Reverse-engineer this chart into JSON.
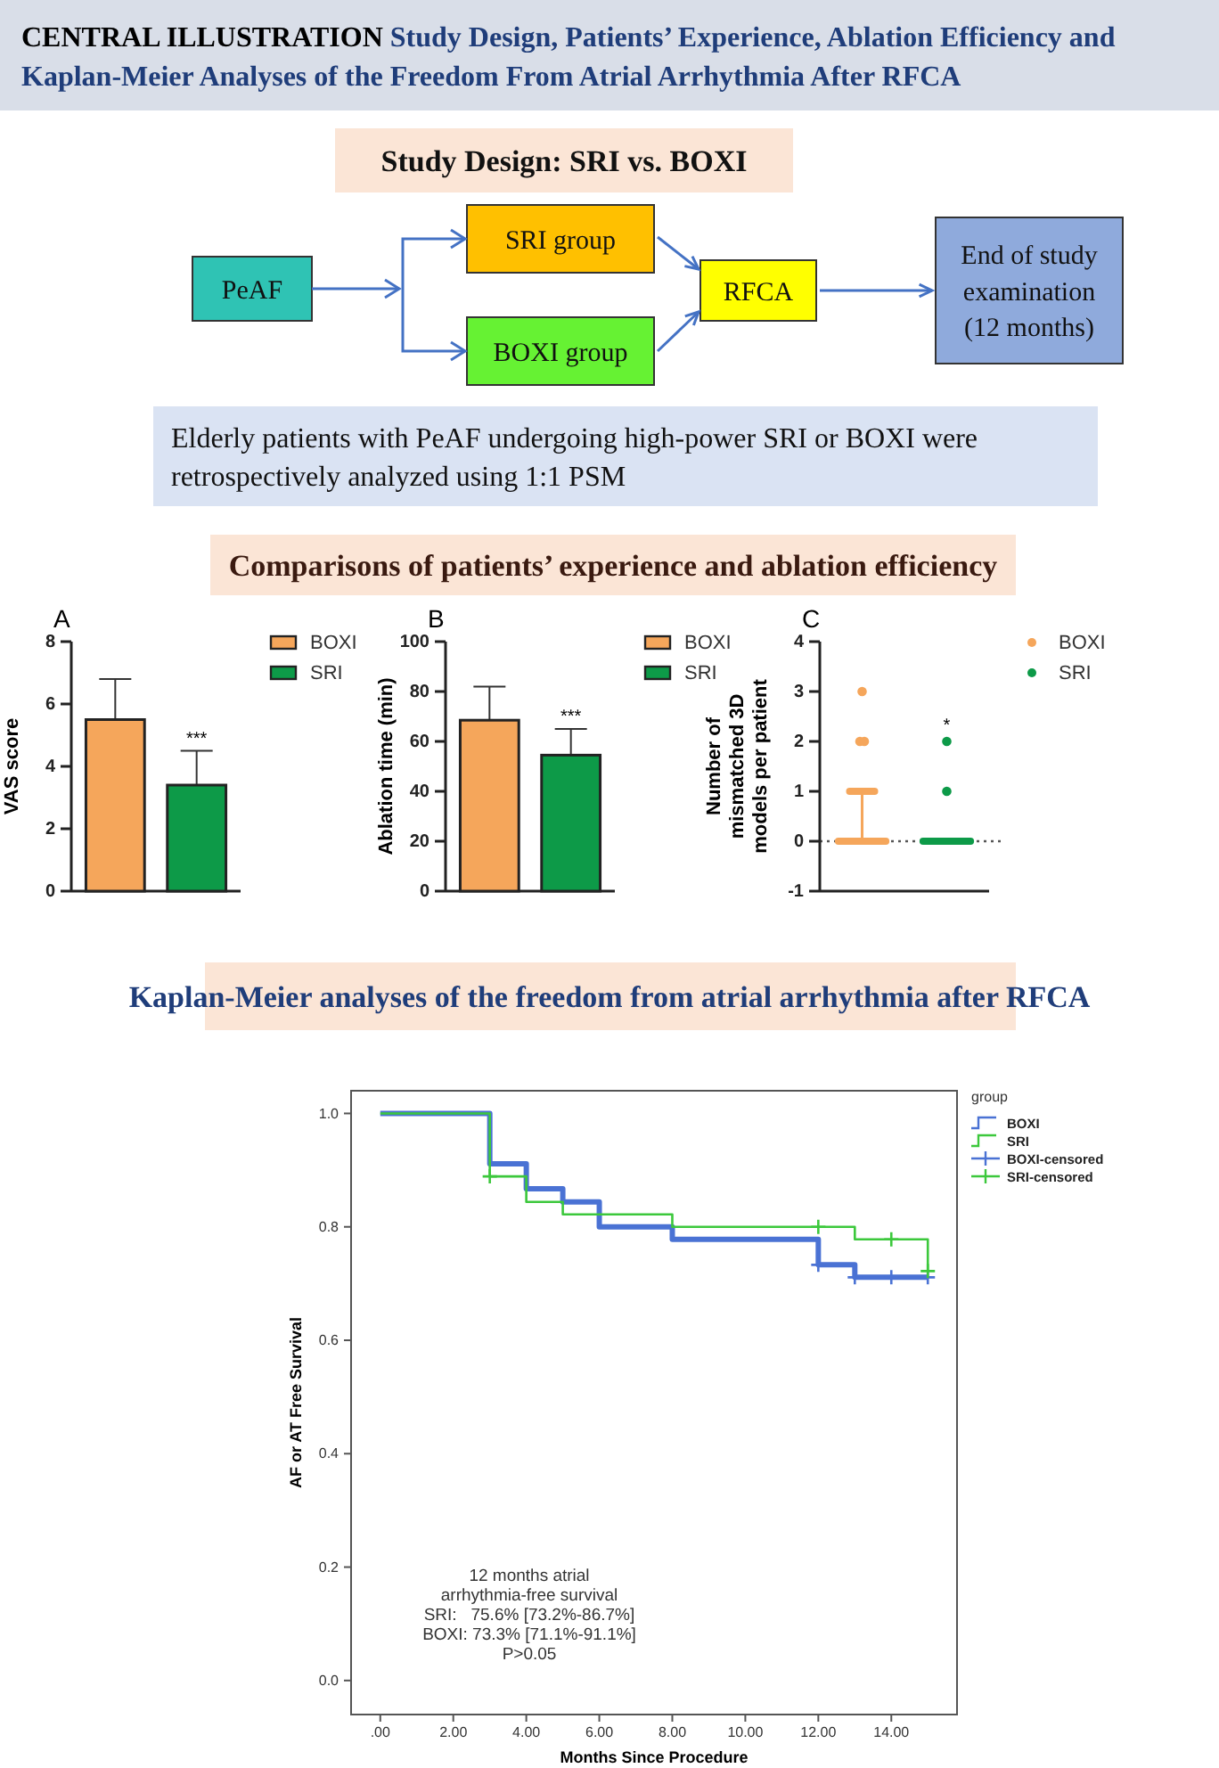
{
  "chart_data": [
    {
      "type": "other",
      "title": "CENTRAL ILLUSTRATION",
      "subtitle": "Study Design, Patients’ Experience, Ablation Efficiency and Kaplan-Meier Analyses of the Freedom From Atrial Arrhythmia After RFCA",
      "annotations": [
        "Study Design: SRI vs. BOXI",
        "PeAF",
        "SRI group",
        "BOXI group",
        "RFCA",
        "End of study examination (12 months)",
        "Elderly patients with PeAF undergoing high-power SRI or BOXI were retrospectively analyzed using 1:1 PSM",
        "Comparisons of patients’ experience and ablation efficiency"
      ]
    },
    {
      "type": "bar",
      "title": "A",
      "ylabel": "VAS score",
      "categories": [
        null,
        null
      ],
      "ylim": [
        0,
        8
      ],
      "yticks": [
        0,
        2,
        4,
        6,
        8
      ],
      "legend": "top right",
      "annotations": [
        "***"
      ],
      "series": [
        {
          "name": "BOXI",
          "color": "#f5a65b",
          "values": [
            5.5,
            null
          ],
          "errors": [
            1.3,
            null
          ]
        },
        {
          "name": "SRI",
          "color": "#0d9a48",
          "values": [
            null,
            3.4
          ],
          "errors": [
            null,
            1.1
          ]
        }
      ]
    },
    {
      "type": "bar",
      "title": "B",
      "ylabel": "Ablation time (min)",
      "categories": [
        null,
        null
      ],
      "ylim": [
        0,
        100
      ],
      "yticks": [
        0,
        20,
        40,
        60,
        80,
        100
      ],
      "legend": "top right",
      "annotations": [
        "***"
      ],
      "series": [
        {
          "name": "BOXI",
          "color": "#f5a65b",
          "values": [
            68.5,
            null
          ],
          "errors": [
            13.5,
            null
          ]
        },
        {
          "name": "SRI",
          "color": "#0d9a48",
          "values": [
            null,
            54.5
          ],
          "errors": [
            null,
            10.5
          ]
        }
      ]
    },
    {
      "type": "box",
      "title": "C",
      "ylabel": "Number of mismatched 3D models per patient",
      "categories": [
        null,
        null
      ],
      "ylim": [
        -1,
        4
      ],
      "yticks": [
        -1,
        0,
        1,
        2,
        3,
        4
      ],
      "legend": "top right",
      "marker": "circle",
      "annotations": [
        "*"
      ],
      "ref_lines": [
        {
          "axis": "y",
          "value": 0,
          "color": "#555555",
          "line_style": "dotted"
        }
      ],
      "series": [
        {
          "name": "BOXI",
          "color": "#f5a65b",
          "boxes": [
            {
              "low": 0,
              "q1": 0,
              "median": 0,
              "q3": 0,
              "high": 1,
              "outliers": [
                2,
                2,
                3
              ]
            },
            null
          ]
        },
        {
          "name": "SRI",
          "color": "#0d9a48",
          "boxes": [
            null,
            {
              "low": 0,
              "q1": 0,
              "median": 0,
              "q3": 0,
              "high": 0,
              "outliers": [
                1,
                2
              ]
            }
          ]
        }
      ]
    },
    {
      "type": "step",
      "title": "Kaplan-Meier analyses of the freedom from atrial arrhythmia after RFCA",
      "xlabel": "Months Since Procedure",
      "ylabel": "AF or AT Free Survival",
      "legend_title": "group",
      "legend": "top right",
      "xlim": [
        -0.8,
        15.8
      ],
      "ylim": [
        -0.06,
        1.04
      ],
      "xticks": [
        {
          "value": 0,
          "label": ".00"
        },
        {
          "value": 2,
          "label": "2.00"
        },
        {
          "value": 4,
          "label": "4.00"
        },
        {
          "value": 6,
          "label": "6.00"
        },
        {
          "value": 8,
          "label": "8.00"
        },
        {
          "value": 10,
          "label": "10.00"
        },
        {
          "value": 12,
          "label": "12.00"
        },
        {
          "value": 14,
          "label": "14.00"
        }
      ],
      "yticks": [
        {
          "value": 0,
          "label": "0.0"
        },
        {
          "value": 0.2,
          "label": "0.2"
        },
        {
          "value": 0.4,
          "label": "0.4"
        },
        {
          "value": 0.6,
          "label": "0.6"
        },
        {
          "value": 0.8,
          "label": "0.8"
        },
        {
          "value": 1,
          "label": "1.0"
        }
      ],
      "annotations": [
        "12 months atrial",
        "arrhythmia-free survival",
        "SRI:   75.6% [73.2%-86.7%]",
        "BOXI: 73.3% [71.1%-91.1%]",
        "P>0.05"
      ],
      "series": [
        {
          "name": "BOXI",
          "type": "step",
          "color": "#4a72d4",
          "x": [
            0,
            3,
            4,
            5,
            6,
            8,
            12,
            13,
            15
          ],
          "values": [
            1,
            0.911,
            0.867,
            0.844,
            0.8,
            0.778,
            0.733,
            0.711,
            0.711
          ]
        },
        {
          "name": "SRI",
          "type": "step",
          "color": "#3cc83c",
          "x": [
            0,
            3,
            4,
            5,
            8,
            13,
            15
          ],
          "values": [
            1,
            0.889,
            0.844,
            0.822,
            0.8,
            0.778,
            0.722
          ]
        },
        {
          "name": "BOXI-censored",
          "type": "scatter",
          "marker": "cross",
          "color": "#4a72d4",
          "x": [
            12,
            13,
            14,
            15
          ],
          "values": [
            0.733,
            0.711,
            0.711,
            0.711
          ]
        },
        {
          "name": "SRI-censored",
          "type": "scatter",
          "marker": "cross",
          "color": "#3cc83c",
          "x": [
            3,
            12,
            14,
            15
          ],
          "values": [
            0.889,
            0.8,
            0.778,
            0.722
          ]
        }
      ]
    }
  ]
}
